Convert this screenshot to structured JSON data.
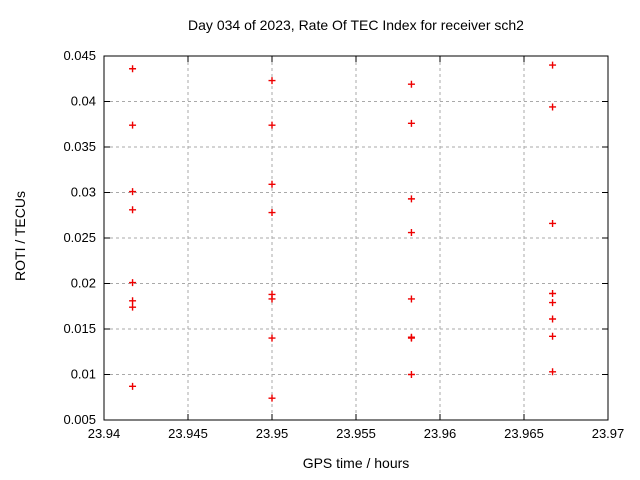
{
  "chart_data": {
    "type": "scatter",
    "title": "Day 034 of 2023, Rate Of TEC Index for receiver sch2",
    "xlabel": "GPS time / hours",
    "ylabel": "ROTI / TECUs",
    "xlim": [
      23.94,
      23.97
    ],
    "ylim": [
      0.005,
      0.045
    ],
    "grid": true,
    "legend": "none",
    "marker": {
      "shape": "plus",
      "color": "#ee0000",
      "size": 7
    },
    "colors": {
      "border": "#000000",
      "gridline": "#a9a9a9",
      "text": "#000000",
      "background": "#ffffff"
    },
    "xticks": [
      {
        "v": 23.94,
        "label": "23.94"
      },
      {
        "v": 23.945,
        "label": "23.945"
      },
      {
        "v": 23.95,
        "label": "23.95"
      },
      {
        "v": 23.955,
        "label": "23.955"
      },
      {
        "v": 23.96,
        "label": "23.96"
      },
      {
        "v": 23.965,
        "label": "23.965"
      },
      {
        "v": 23.97,
        "label": "23.97"
      }
    ],
    "yticks": [
      {
        "v": 0.005,
        "label": "0.005"
      },
      {
        "v": 0.01,
        "label": "0.01"
      },
      {
        "v": 0.015,
        "label": "0.015"
      },
      {
        "v": 0.02,
        "label": "0.02"
      },
      {
        "v": 0.025,
        "label": "0.025"
      },
      {
        "v": 0.03,
        "label": "0.03"
      },
      {
        "v": 0.035,
        "label": "0.035"
      },
      {
        "v": 0.04,
        "label": "0.04"
      },
      {
        "v": 0.045,
        "label": "0.045"
      }
    ],
    "groups": [
      {
        "x": 23.9417,
        "values": [
          0.0436,
          0.0374,
          0.0301,
          0.0281,
          0.0201,
          0.0181,
          0.0174,
          0.0087
        ]
      },
      {
        "x": 23.95,
        "values": [
          0.0423,
          0.0374,
          0.0309,
          0.0278,
          0.0188,
          0.0183,
          0.014,
          0.0074
        ]
      },
      {
        "x": 23.9583,
        "values": [
          0.0419,
          0.0376,
          0.0293,
          0.0256,
          0.0183,
          0.0141,
          0.014,
          0.01
        ]
      },
      {
        "x": 23.9667,
        "values": [
          0.044,
          0.0394,
          0.0266,
          0.0189,
          0.0179,
          0.0161,
          0.0142,
          0.0103
        ]
      }
    ]
  }
}
